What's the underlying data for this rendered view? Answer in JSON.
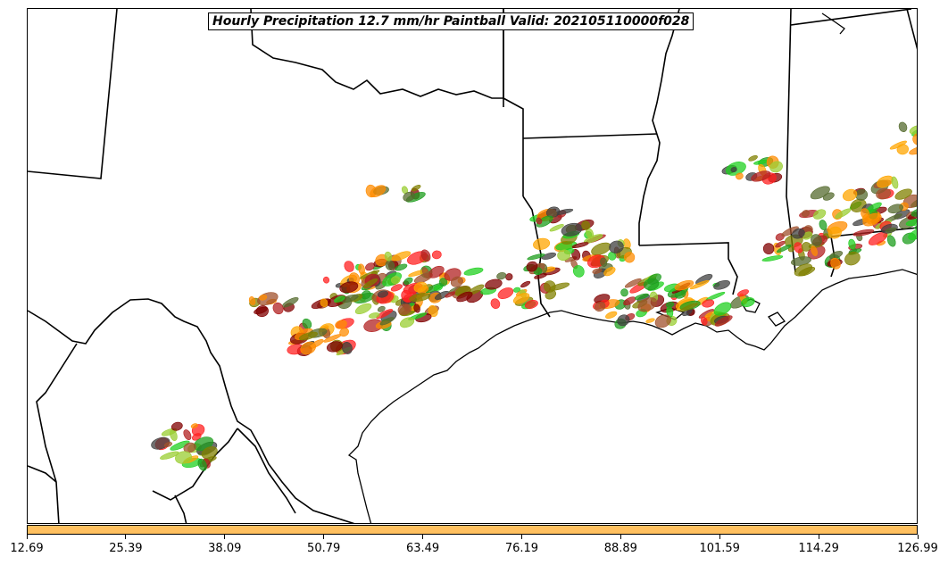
{
  "title": "Hourly Precipitation 12.7 mm/hr Paintball Valid: 202105110000f028",
  "colorbar": {
    "color": "#FFC060",
    "ticks": [
      "12.69",
      "25.39",
      "38.09",
      "50.79",
      "63.49",
      "76.19",
      "88.89",
      "101.59",
      "114.29",
      "126.99"
    ]
  },
  "member_colors": [
    "#FF2020",
    "#FF8C00",
    "#FFA500",
    "#20D020",
    "#1E9E1E",
    "#556B2F",
    "#808000",
    "#9ACD32",
    "#800000",
    "#A0522D",
    "#B22222",
    "#404040"
  ]
}
